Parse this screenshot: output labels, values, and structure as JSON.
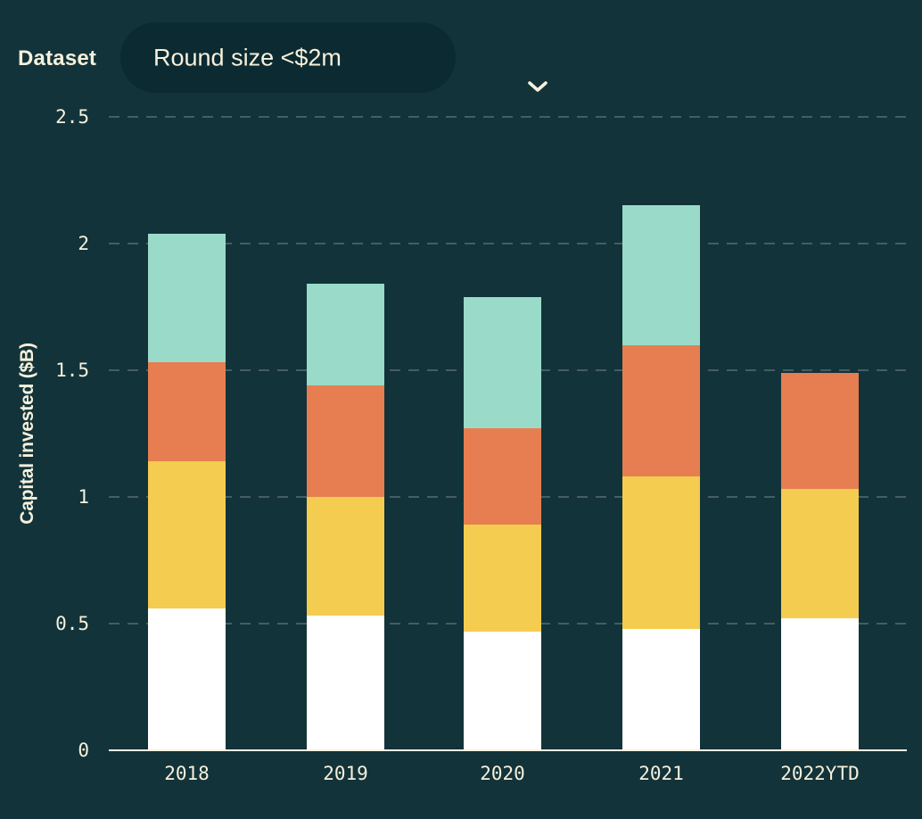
{
  "header": {
    "label": "Dataset",
    "dropdown": {
      "value": "Round size <$2m",
      "icon": "chevron-down"
    }
  },
  "chart_data": {
    "type": "bar",
    "stacked": true,
    "title": "",
    "xlabel": "",
    "ylabel": "Capital invested ($B)",
    "categories": [
      "2018",
      "2019",
      "2020",
      "2021",
      "2022YTD"
    ],
    "series": [
      {
        "name": "segment-white",
        "color": "#ffffff",
        "values": [
          0.56,
          0.53,
          0.47,
          0.48,
          0.52
        ]
      },
      {
        "name": "segment-yellow",
        "color": "#f4cc4f",
        "values": [
          0.58,
          0.47,
          0.42,
          0.6,
          0.51
        ]
      },
      {
        "name": "segment-orange",
        "color": "#e67e51",
        "values": [
          0.39,
          0.44,
          0.38,
          0.52,
          0.46
        ]
      },
      {
        "name": "segment-teal",
        "color": "#99dbc8",
        "values": [
          0.51,
          0.4,
          0.52,
          0.55,
          0.0
        ]
      }
    ],
    "stack_totals": [
      2.04,
      1.84,
      1.79,
      2.15,
      1.49
    ],
    "yticks": [
      "0",
      "0.5",
      "1",
      "1.5",
      "2",
      "2.5"
    ],
    "ylim": [
      0,
      2.5
    ],
    "legend": "none",
    "grid": "dashed-horizontal"
  },
  "colors": {
    "background": "#123339",
    "pill_background": "#0c2a31",
    "text_cream": "#f6f0dc",
    "gridline": "#465d63",
    "axis_line": "#f8f2e2"
  }
}
